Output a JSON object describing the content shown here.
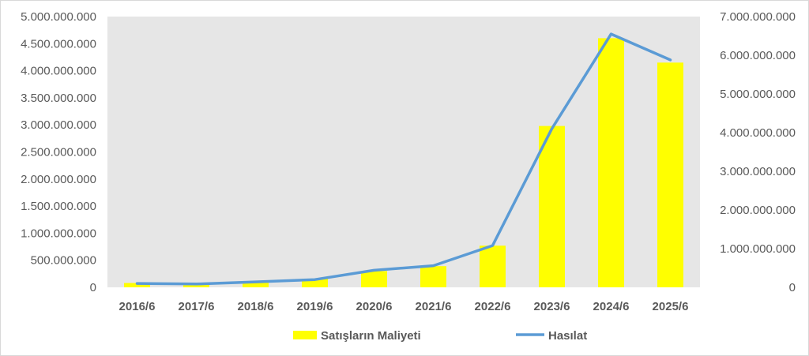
{
  "chart_data": {
    "type": "bar+line",
    "title": "",
    "categories": [
      "2016/6",
      "2017/6",
      "2018/6",
      "2019/6",
      "2020/6",
      "2021/6",
      "2022/6",
      "2023/6",
      "2024/6",
      "2025/6"
    ],
    "series": [
      {
        "name": "Satışların Maliyeti",
        "type": "bar",
        "axis": "left",
        "color": "#ffff00",
        "values": [
          80000000,
          60000000,
          100000000,
          160000000,
          300000000,
          390000000,
          770000000,
          2980000000,
          4600000000,
          4150000000
        ]
      },
      {
        "name": "Hasılat",
        "type": "line",
        "axis": "right",
        "color": "#5b9bd5",
        "values": [
          100000000,
          85000000,
          140000000,
          200000000,
          440000000,
          560000000,
          1080000000,
          4100000000,
          6550000000,
          5880000000
        ]
      }
    ],
    "y_left": {
      "range": [
        0,
        5000000000
      ],
      "ticks": [
        "0",
        "500.000.000",
        "1.000.000.000",
        "1.500.000.000",
        "2.000.000.000",
        "2.500.000.000",
        "3.000.000.000",
        "3.500.000.000",
        "4.000.000.000",
        "4.500.000.000",
        "5.000.000.000"
      ]
    },
    "y_right": {
      "range": [
        0,
        7000000000
      ],
      "ticks": [
        "0",
        "1.000.000.000",
        "2.000.000.000",
        "3.000.000.000",
        "4.000.000.000",
        "5.000.000.000",
        "6.000.000.000",
        "7.000.000.000"
      ]
    },
    "grid": false,
    "plot_background": "#e6e6e6",
    "legend_position": "bottom"
  }
}
